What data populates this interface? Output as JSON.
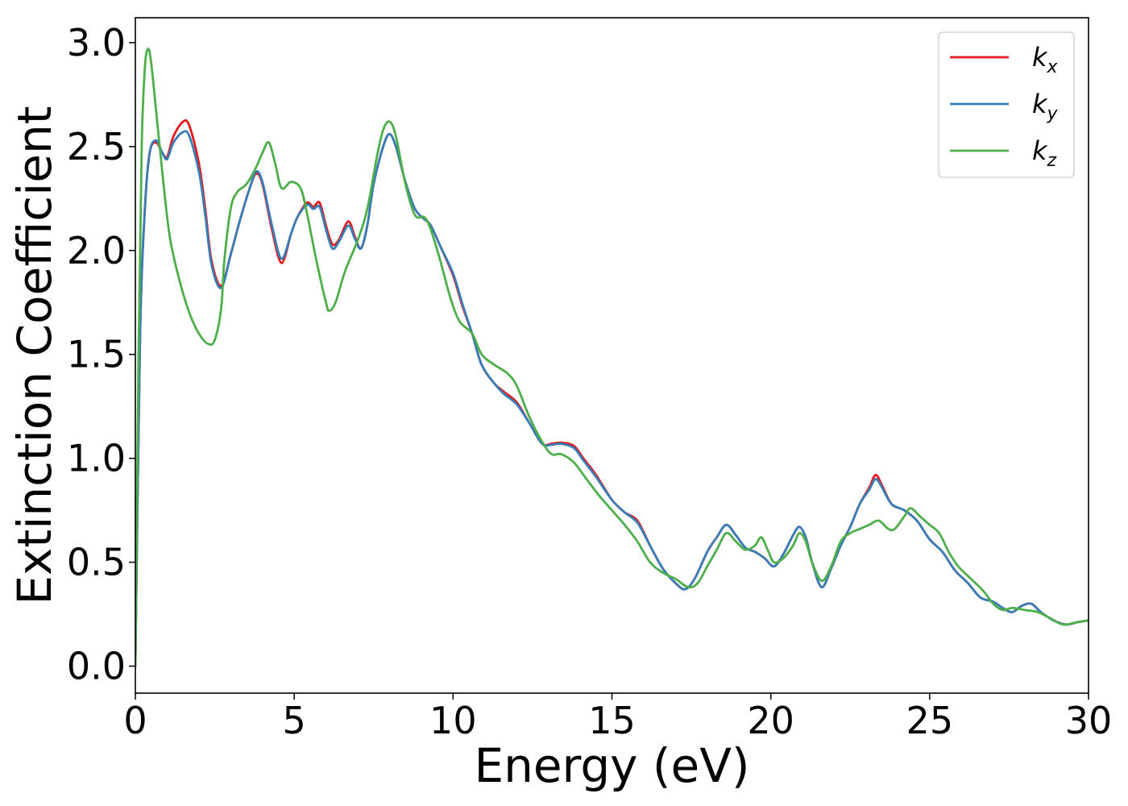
{
  "chart_data": {
    "type": "line",
    "title": "",
    "xlabel": "Energy (eV)",
    "ylabel": "Extinction Coefficient",
    "xlim": [
      0,
      30
    ],
    "ylim": [
      -0.13,
      3.12
    ],
    "xticks": [
      0,
      5,
      10,
      15,
      20,
      25,
      30
    ],
    "xtick_labels": [
      "0",
      "5",
      "10",
      "15",
      "20",
      "25",
      "30"
    ],
    "yticks": [
      0.0,
      0.5,
      1.0,
      1.5,
      2.0,
      2.5,
      3.0
    ],
    "ytick_labels": [
      "0.0",
      "0.5",
      "1.0",
      "1.5",
      "2.0",
      "2.5",
      "3.0"
    ],
    "grid": false,
    "legend_position": "top-right",
    "series": [
      {
        "name": "k_x",
        "legend_base": "k",
        "legend_sub": "x",
        "color": "#e41a1c",
        "points": [
          [
            0,
            0.0
          ],
          [
            0.15,
            1.6
          ],
          [
            0.3,
            2.2
          ],
          [
            0.45,
            2.47
          ],
          [
            0.65,
            2.52
          ],
          [
            0.85,
            2.47
          ],
          [
            1.0,
            2.45
          ],
          [
            1.2,
            2.55
          ],
          [
            1.5,
            2.62
          ],
          [
            1.7,
            2.6
          ],
          [
            2.0,
            2.42
          ],
          [
            2.2,
            2.2
          ],
          [
            2.4,
            1.95
          ],
          [
            2.7,
            1.83
          ],
          [
            3.0,
            1.98
          ],
          [
            3.3,
            2.15
          ],
          [
            3.6,
            2.3
          ],
          [
            3.8,
            2.37
          ],
          [
            4.0,
            2.32
          ],
          [
            4.3,
            2.1
          ],
          [
            4.6,
            1.94
          ],
          [
            4.9,
            2.08
          ],
          [
            5.1,
            2.16
          ],
          [
            5.4,
            2.23
          ],
          [
            5.6,
            2.21
          ],
          [
            5.8,
            2.23
          ],
          [
            6.0,
            2.12
          ],
          [
            6.2,
            2.03
          ],
          [
            6.4,
            2.05
          ],
          [
            6.7,
            2.14
          ],
          [
            6.9,
            2.07
          ],
          [
            7.1,
            2.01
          ],
          [
            7.3,
            2.12
          ],
          [
            7.5,
            2.32
          ],
          [
            7.8,
            2.5
          ],
          [
            8.0,
            2.56
          ],
          [
            8.2,
            2.5
          ],
          [
            8.5,
            2.33
          ],
          [
            8.8,
            2.2
          ],
          [
            9.1,
            2.15
          ],
          [
            9.3,
            2.12
          ],
          [
            9.6,
            2.02
          ],
          [
            10.0,
            1.88
          ],
          [
            10.3,
            1.73
          ],
          [
            10.6,
            1.6
          ],
          [
            10.9,
            1.45
          ],
          [
            11.3,
            1.36
          ],
          [
            11.6,
            1.32
          ],
          [
            12.0,
            1.27
          ],
          [
            12.4,
            1.17
          ],
          [
            12.8,
            1.07
          ],
          [
            13.1,
            1.07
          ],
          [
            13.4,
            1.075
          ],
          [
            13.8,
            1.06
          ],
          [
            14.1,
            1.0
          ],
          [
            14.5,
            0.92
          ],
          [
            15.0,
            0.8
          ],
          [
            15.4,
            0.74
          ],
          [
            15.8,
            0.7
          ],
          [
            16.2,
            0.58
          ],
          [
            16.6,
            0.47
          ],
          [
            17.0,
            0.4
          ],
          [
            17.3,
            0.37
          ],
          [
            17.6,
            0.42
          ],
          [
            18.0,
            0.55
          ],
          [
            18.3,
            0.62
          ],
          [
            18.6,
            0.68
          ],
          [
            18.9,
            0.63
          ],
          [
            19.2,
            0.57
          ],
          [
            19.5,
            0.55
          ],
          [
            19.8,
            0.52
          ],
          [
            20.1,
            0.48
          ],
          [
            20.4,
            0.54
          ],
          [
            20.7,
            0.63
          ],
          [
            20.9,
            0.67
          ],
          [
            21.1,
            0.62
          ],
          [
            21.3,
            0.5
          ],
          [
            21.6,
            0.38
          ],
          [
            21.9,
            0.47
          ],
          [
            22.2,
            0.58
          ],
          [
            22.5,
            0.67
          ],
          [
            22.8,
            0.78
          ],
          [
            23.1,
            0.86
          ],
          [
            23.3,
            0.92
          ],
          [
            23.5,
            0.87
          ],
          [
            23.8,
            0.78
          ],
          [
            24.2,
            0.75
          ],
          [
            24.6,
            0.7
          ],
          [
            25.0,
            0.61
          ],
          [
            25.4,
            0.55
          ],
          [
            25.8,
            0.46
          ],
          [
            26.2,
            0.4
          ],
          [
            26.6,
            0.33
          ],
          [
            27.0,
            0.31
          ],
          [
            27.3,
            0.28
          ],
          [
            27.6,
            0.26
          ],
          [
            27.9,
            0.29
          ],
          [
            28.2,
            0.3
          ],
          [
            28.5,
            0.26
          ],
          [
            28.9,
            0.22
          ],
          [
            29.3,
            0.2
          ],
          [
            29.6,
            0.21
          ],
          [
            30.0,
            0.22
          ]
        ]
      },
      {
        "name": "k_y",
        "legend_base": "k",
        "legend_sub": "y",
        "color": "#377eb8",
        "points": [
          [
            0,
            0.0
          ],
          [
            0.15,
            1.6
          ],
          [
            0.3,
            2.2
          ],
          [
            0.45,
            2.47
          ],
          [
            0.65,
            2.53
          ],
          [
            0.85,
            2.47
          ],
          [
            1.0,
            2.44
          ],
          [
            1.2,
            2.52
          ],
          [
            1.5,
            2.57
          ],
          [
            1.7,
            2.55
          ],
          [
            2.0,
            2.38
          ],
          [
            2.2,
            2.17
          ],
          [
            2.4,
            1.93
          ],
          [
            2.7,
            1.82
          ],
          [
            3.0,
            1.98
          ],
          [
            3.3,
            2.15
          ],
          [
            3.6,
            2.3
          ],
          [
            3.8,
            2.38
          ],
          [
            4.0,
            2.33
          ],
          [
            4.3,
            2.12
          ],
          [
            4.6,
            1.96
          ],
          [
            4.9,
            2.08
          ],
          [
            5.1,
            2.16
          ],
          [
            5.4,
            2.22
          ],
          [
            5.6,
            2.2
          ],
          [
            5.8,
            2.21
          ],
          [
            6.0,
            2.1
          ],
          [
            6.2,
            2.01
          ],
          [
            6.4,
            2.04
          ],
          [
            6.7,
            2.12
          ],
          [
            6.9,
            2.06
          ],
          [
            7.1,
            2.01
          ],
          [
            7.3,
            2.12
          ],
          [
            7.5,
            2.32
          ],
          [
            7.8,
            2.5
          ],
          [
            8.0,
            2.56
          ],
          [
            8.2,
            2.5
          ],
          [
            8.5,
            2.33
          ],
          [
            8.8,
            2.2
          ],
          [
            9.1,
            2.15
          ],
          [
            9.3,
            2.12
          ],
          [
            9.6,
            2.02
          ],
          [
            10.0,
            1.89
          ],
          [
            10.3,
            1.74
          ],
          [
            10.6,
            1.6
          ],
          [
            10.9,
            1.45
          ],
          [
            11.3,
            1.36
          ],
          [
            11.6,
            1.31
          ],
          [
            12.0,
            1.26
          ],
          [
            12.4,
            1.17
          ],
          [
            12.8,
            1.07
          ],
          [
            13.1,
            1.065
          ],
          [
            13.4,
            1.07
          ],
          [
            13.8,
            1.05
          ],
          [
            14.1,
            0.99
          ],
          [
            14.5,
            0.91
          ],
          [
            15.0,
            0.8
          ],
          [
            15.4,
            0.74
          ],
          [
            15.8,
            0.69
          ],
          [
            16.2,
            0.58
          ],
          [
            16.6,
            0.47
          ],
          [
            17.0,
            0.4
          ],
          [
            17.3,
            0.37
          ],
          [
            17.6,
            0.42
          ],
          [
            18.0,
            0.55
          ],
          [
            18.3,
            0.62
          ],
          [
            18.6,
            0.68
          ],
          [
            18.9,
            0.63
          ],
          [
            19.2,
            0.57
          ],
          [
            19.5,
            0.55
          ],
          [
            19.8,
            0.52
          ],
          [
            20.1,
            0.48
          ],
          [
            20.4,
            0.54
          ],
          [
            20.7,
            0.63
          ],
          [
            20.9,
            0.67
          ],
          [
            21.1,
            0.62
          ],
          [
            21.3,
            0.5
          ],
          [
            21.6,
            0.38
          ],
          [
            21.9,
            0.47
          ],
          [
            22.2,
            0.58
          ],
          [
            22.5,
            0.67
          ],
          [
            22.8,
            0.78
          ],
          [
            23.1,
            0.85
          ],
          [
            23.3,
            0.9
          ],
          [
            23.5,
            0.86
          ],
          [
            23.8,
            0.78
          ],
          [
            24.2,
            0.75
          ],
          [
            24.6,
            0.7
          ],
          [
            25.0,
            0.61
          ],
          [
            25.4,
            0.55
          ],
          [
            25.8,
            0.46
          ],
          [
            26.2,
            0.4
          ],
          [
            26.6,
            0.33
          ],
          [
            27.0,
            0.31
          ],
          [
            27.3,
            0.28
          ],
          [
            27.6,
            0.26
          ],
          [
            27.9,
            0.29
          ],
          [
            28.2,
            0.3
          ],
          [
            28.5,
            0.26
          ],
          [
            28.9,
            0.22
          ],
          [
            29.3,
            0.2
          ],
          [
            29.6,
            0.21
          ],
          [
            30.0,
            0.22
          ]
        ]
      },
      {
        "name": "k_z",
        "legend_base": "k",
        "legend_sub": "z",
        "color": "#4daf4a",
        "points": [
          [
            0,
            0.0
          ],
          [
            0.1,
            1.5
          ],
          [
            0.2,
            2.5
          ],
          [
            0.3,
            2.88
          ],
          [
            0.4,
            2.97
          ],
          [
            0.5,
            2.9
          ],
          [
            0.7,
            2.6
          ],
          [
            0.9,
            2.3
          ],
          [
            1.1,
            2.05
          ],
          [
            1.4,
            1.85
          ],
          [
            1.7,
            1.7
          ],
          [
            2.0,
            1.6
          ],
          [
            2.3,
            1.55
          ],
          [
            2.5,
            1.57
          ],
          [
            2.7,
            1.72
          ],
          [
            2.8,
            1.95
          ],
          [
            3.0,
            2.2
          ],
          [
            3.2,
            2.28
          ],
          [
            3.5,
            2.32
          ],
          [
            3.8,
            2.4
          ],
          [
            4.0,
            2.47
          ],
          [
            4.2,
            2.52
          ],
          [
            4.4,
            2.42
          ],
          [
            4.6,
            2.3
          ],
          [
            4.9,
            2.33
          ],
          [
            5.2,
            2.3
          ],
          [
            5.4,
            2.18
          ],
          [
            5.7,
            1.95
          ],
          [
            6.0,
            1.75
          ],
          [
            6.1,
            1.71
          ],
          [
            6.3,
            1.75
          ],
          [
            6.6,
            1.9
          ],
          [
            7.0,
            2.05
          ],
          [
            7.3,
            2.2
          ],
          [
            7.6,
            2.45
          ],
          [
            7.8,
            2.58
          ],
          [
            8.0,
            2.62
          ],
          [
            8.2,
            2.55
          ],
          [
            8.5,
            2.32
          ],
          [
            8.8,
            2.17
          ],
          [
            9.1,
            2.16
          ],
          [
            9.3,
            2.1
          ],
          [
            9.6,
            1.95
          ],
          [
            9.9,
            1.78
          ],
          [
            10.2,
            1.66
          ],
          [
            10.6,
            1.6
          ],
          [
            10.9,
            1.5
          ],
          [
            11.3,
            1.45
          ],
          [
            11.7,
            1.41
          ],
          [
            12.0,
            1.35
          ],
          [
            12.4,
            1.2
          ],
          [
            12.8,
            1.08
          ],
          [
            13.1,
            1.02
          ],
          [
            13.4,
            1.02
          ],
          [
            13.8,
            0.98
          ],
          [
            14.2,
            0.9
          ],
          [
            14.6,
            0.82
          ],
          [
            15.0,
            0.75
          ],
          [
            15.4,
            0.68
          ],
          [
            15.8,
            0.6
          ],
          [
            16.2,
            0.5
          ],
          [
            16.6,
            0.45
          ],
          [
            17.0,
            0.42
          ],
          [
            17.4,
            0.38
          ],
          [
            17.7,
            0.4
          ],
          [
            18.0,
            0.48
          ],
          [
            18.3,
            0.56
          ],
          [
            18.6,
            0.64
          ],
          [
            18.9,
            0.6
          ],
          [
            19.2,
            0.56
          ],
          [
            19.5,
            0.58
          ],
          [
            19.7,
            0.62
          ],
          [
            19.9,
            0.56
          ],
          [
            20.1,
            0.5
          ],
          [
            20.4,
            0.52
          ],
          [
            20.7,
            0.58
          ],
          [
            20.9,
            0.64
          ],
          [
            21.1,
            0.6
          ],
          [
            21.3,
            0.5
          ],
          [
            21.6,
            0.41
          ],
          [
            21.9,
            0.48
          ],
          [
            22.2,
            0.6
          ],
          [
            22.5,
            0.64
          ],
          [
            22.8,
            0.66
          ],
          [
            23.1,
            0.68
          ],
          [
            23.4,
            0.7
          ],
          [
            23.7,
            0.66
          ],
          [
            23.9,
            0.66
          ],
          [
            24.2,
            0.72
          ],
          [
            24.4,
            0.76
          ],
          [
            24.7,
            0.72
          ],
          [
            25.0,
            0.68
          ],
          [
            25.3,
            0.64
          ],
          [
            25.6,
            0.55
          ],
          [
            25.9,
            0.48
          ],
          [
            26.3,
            0.42
          ],
          [
            26.7,
            0.36
          ],
          [
            27.0,
            0.3
          ],
          [
            27.3,
            0.27
          ],
          [
            27.6,
            0.28
          ],
          [
            28.0,
            0.27
          ],
          [
            28.4,
            0.26
          ],
          [
            28.8,
            0.23
          ],
          [
            29.2,
            0.2
          ],
          [
            29.6,
            0.21
          ],
          [
            30.0,
            0.22
          ]
        ]
      }
    ]
  }
}
